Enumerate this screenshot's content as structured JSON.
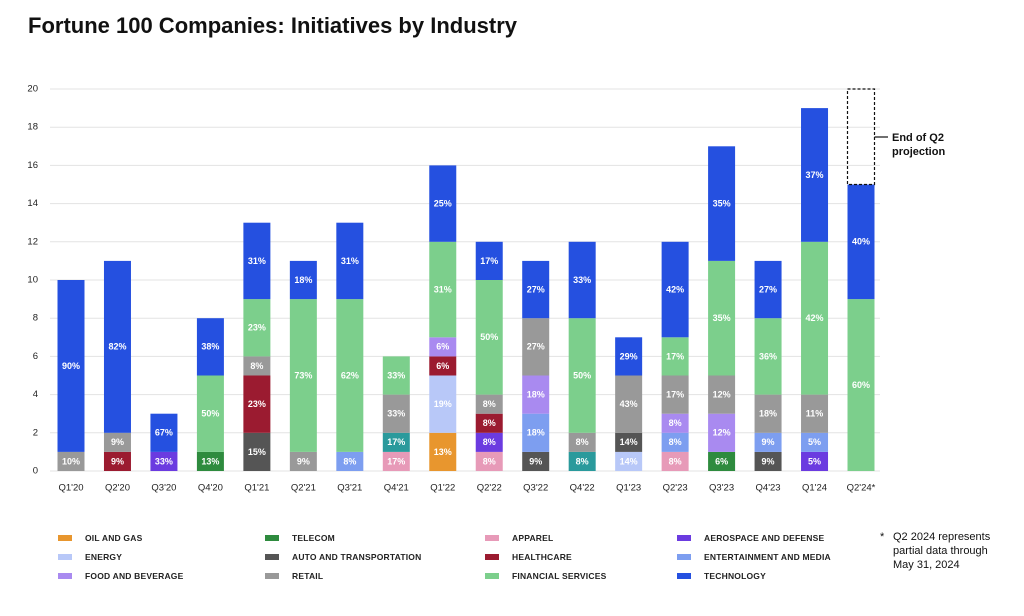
{
  "chart_data": {
    "type": "stacked_bar",
    "title": "Fortune 100 Companies: Initiatives by Industry",
    "categories": [
      "Q1'20",
      "Q2'20",
      "Q3'20",
      "Q4'20",
      "Q1'21",
      "Q2'21",
      "Q3'21",
      "Q4'21",
      "Q1'22",
      "Q2'22",
      "Q3'22",
      "Q4'22",
      "Q1'23",
      "Q2'23",
      "Q3'23",
      "Q4'23",
      "Q1'24",
      "Q2'24*"
    ],
    "ylim": [
      0,
      20
    ],
    "yticks": [
      0,
      2,
      4,
      6,
      8,
      10,
      12,
      14,
      16,
      18,
      20
    ],
    "grid": true,
    "annotation": "End of Q2 projection",
    "footnote_marker": "*",
    "footnote": "Q2 2024 represents partial data through May 31, 2024",
    "series": [
      {
        "name": "OIL AND GAS",
        "color": "#e8962e",
        "values": [
          null,
          null,
          null,
          null,
          null,
          null,
          null,
          null,
          2,
          null,
          null,
          null,
          null,
          null,
          null,
          null,
          null,
          null
        ],
        "value_labels": [
          null,
          null,
          null,
          null,
          null,
          null,
          null,
          null,
          "13%",
          null,
          null,
          null,
          null,
          null,
          null,
          null,
          null,
          null
        ]
      },
      {
        "name": "TELECOM",
        "color": "#2e8b3e",
        "values": [
          null,
          null,
          null,
          1,
          null,
          null,
          null,
          null,
          null,
          null,
          null,
          null,
          null,
          null,
          1,
          null,
          null,
          null
        ],
        "value_labels": [
          null,
          null,
          null,
          "13%",
          null,
          null,
          null,
          null,
          null,
          null,
          null,
          null,
          null,
          null,
          "6%",
          null,
          null,
          null
        ]
      },
      {
        "name": "APPAREL",
        "color": "#e79ab8",
        "values": [
          null,
          null,
          null,
          null,
          null,
          null,
          null,
          1,
          null,
          1,
          null,
          null,
          null,
          1,
          null,
          null,
          null,
          null
        ],
        "value_labels": [
          null,
          null,
          null,
          null,
          null,
          null,
          null,
          "17%",
          null,
          "8%",
          null,
          null,
          null,
          "8%",
          null,
          null,
          null,
          null
        ]
      },
      {
        "color": "#2a9a9c",
        "values": [
          null,
          null,
          null,
          null,
          null,
          null,
          null,
          1,
          null,
          null,
          null,
          1,
          null,
          null,
          null,
          null,
          null,
          null
        ],
        "value_labels": [
          null,
          null,
          null,
          null,
          null,
          null,
          null,
          "17%",
          null,
          null,
          null,
          "8%",
          null,
          null,
          null,
          null,
          null,
          null
        ]
      },
      {
        "name": "AEROSPACE AND DEFENSE",
        "color": "#6b3be0",
        "values": [
          null,
          null,
          1,
          null,
          null,
          null,
          null,
          null,
          null,
          1,
          null,
          null,
          null,
          null,
          null,
          null,
          1,
          null
        ],
        "value_labels": [
          null,
          null,
          "33%",
          null,
          null,
          null,
          null,
          null,
          null,
          "8%",
          null,
          null,
          null,
          null,
          null,
          null,
          "5%",
          null
        ]
      },
      {
        "name": "ENERGY",
        "color": "#b8c8f8",
        "values": [
          null,
          null,
          null,
          null,
          null,
          null,
          null,
          null,
          3,
          null,
          null,
          null,
          1,
          null,
          null,
          null,
          null,
          null
        ],
        "value_labels": [
          null,
          null,
          null,
          null,
          null,
          null,
          null,
          null,
          "19%",
          null,
          null,
          null,
          "14%",
          null,
          null,
          null,
          null,
          null
        ]
      },
      {
        "name": "AUTO AND TRANSPORTATION",
        "color": "#555555",
        "values": [
          null,
          null,
          null,
          null,
          2,
          null,
          null,
          null,
          null,
          null,
          1,
          null,
          1,
          null,
          null,
          1,
          null,
          null
        ],
        "value_labels": [
          null,
          null,
          null,
          null,
          "15%",
          null,
          null,
          null,
          null,
          null,
          "9%",
          null,
          "14%",
          null,
          null,
          "9%",
          null,
          null
        ]
      },
      {
        "name": "HEALTHCARE",
        "color": "#9b1b30",
        "values": [
          null,
          1,
          null,
          null,
          3,
          null,
          null,
          null,
          1,
          1,
          null,
          null,
          null,
          null,
          null,
          null,
          null,
          null
        ],
        "value_labels": [
          null,
          "9%",
          null,
          null,
          "23%",
          null,
          null,
          null,
          "6%",
          "8%",
          null,
          null,
          null,
          null,
          null,
          null,
          null,
          null
        ]
      },
      {
        "name": "ENTERTAINMENT AND MEDIA",
        "color": "#7d9ef0",
        "values": [
          null,
          null,
          null,
          null,
          null,
          null,
          1,
          null,
          null,
          null,
          2,
          null,
          null,
          1,
          null,
          1,
          1,
          null
        ],
        "value_labels": [
          null,
          null,
          null,
          null,
          null,
          null,
          "8%",
          null,
          null,
          null,
          "18%",
          null,
          null,
          "8%",
          null,
          "9%",
          "5%",
          null
        ]
      },
      {
        "name": "FOOD AND BEVERAGE",
        "color": "#a98af0",
        "values": [
          null,
          null,
          null,
          null,
          null,
          null,
          null,
          null,
          1,
          null,
          2,
          null,
          null,
          1,
          2,
          null,
          null,
          null
        ],
        "value_labels": [
          null,
          null,
          null,
          null,
          null,
          null,
          null,
          null,
          "6%",
          null,
          "18%",
          null,
          null,
          "8%",
          "12%",
          null,
          null,
          null
        ]
      },
      {
        "name": "RETAIL",
        "color": "#999999",
        "values": [
          1,
          1,
          null,
          null,
          1,
          1,
          null,
          2,
          null,
          1,
          3,
          1,
          3,
          2,
          2,
          2,
          2,
          null
        ],
        "value_labels": [
          "10%",
          "9%",
          null,
          null,
          "8%",
          "9%",
          null,
          "33%",
          null,
          "8%",
          "27%",
          "8%",
          "43%",
          "17%",
          "12%",
          "18%",
          "11%",
          null
        ]
      },
      {
        "name": "FINANCIAL SERVICES",
        "color": "#7ccf8c",
        "values": [
          null,
          null,
          null,
          4,
          3,
          8,
          8,
          2,
          5,
          6,
          null,
          6,
          null,
          2,
          6,
          4,
          8,
          9
        ],
        "value_labels": [
          null,
          null,
          null,
          "50%",
          "23%",
          "73%",
          "62%",
          "33%",
          "31%",
          "50%",
          null,
          "50%",
          null,
          "17%",
          "35%",
          "36%",
          "42%",
          "60%"
        ]
      },
      {
        "name": "TECHNOLOGY",
        "color": "#2550e0",
        "values": [
          9,
          9,
          2,
          3,
          4,
          2,
          4,
          null,
          4,
          2,
          3,
          4,
          2,
          5,
          6,
          3,
          7,
          6
        ],
        "value_labels": [
          "90%",
          "82%",
          "67%",
          "38%",
          "31%",
          "18%",
          "31%",
          null,
          "25%",
          "17%",
          "27%",
          "33%",
          "29%",
          "42%",
          "35%",
          "27%",
          "37%",
          "40%"
        ]
      }
    ]
  }
}
